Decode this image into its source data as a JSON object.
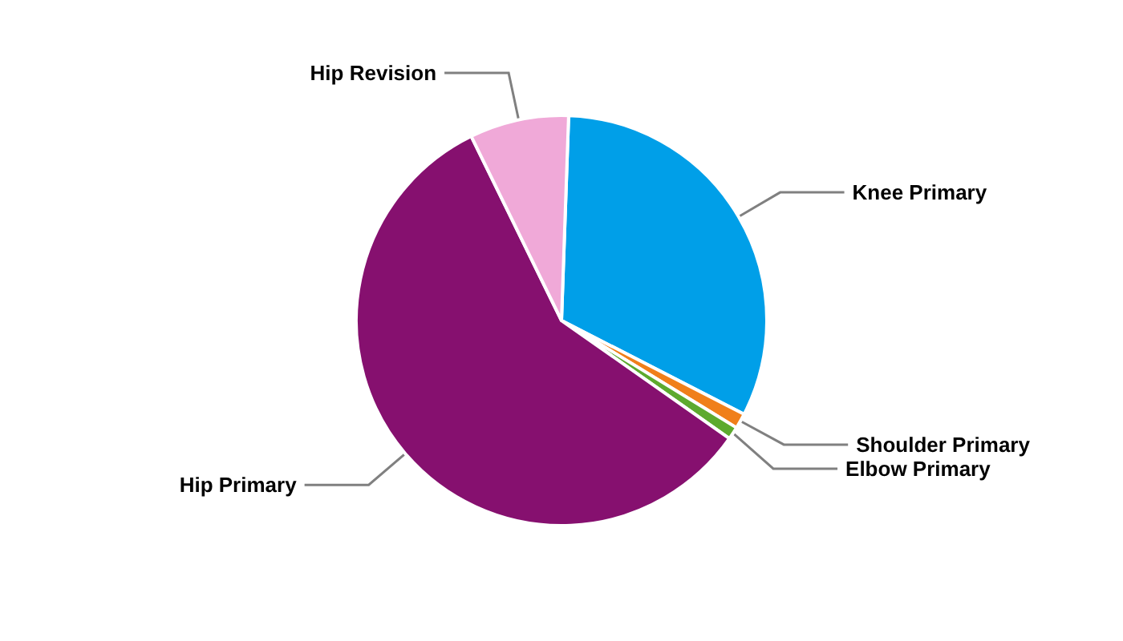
{
  "chart_data": {
    "type": "pie",
    "categories": [
      "Knee Primary",
      "Shoulder Primary",
      "Elbow Primary",
      "Hip Primary",
      "Hip Revision"
    ],
    "values": [
      32,
      1.2,
      1,
      58,
      7.8
    ],
    "colors": [
      "#009fe8",
      "#f07f1a",
      "#5daa2e",
      "#86106f",
      "#f0a9d8"
    ],
    "legend": false
  }
}
